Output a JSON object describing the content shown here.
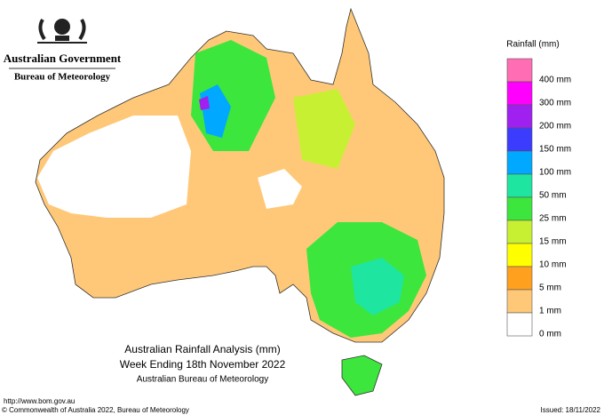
{
  "header": {
    "government": "Australian Government",
    "agency": "Bureau of Meteorology"
  },
  "legend": {
    "title": "Rainfall (mm)",
    "items": [
      {
        "label": "400 mm",
        "color": "#ff6eb4"
      },
      {
        "label": "300 mm",
        "color": "#ff00ff"
      },
      {
        "label": "200 mm",
        "color": "#a020f0"
      },
      {
        "label": "150 mm",
        "color": "#3c3cff"
      },
      {
        "label": "100 mm",
        "color": "#00a8ff"
      },
      {
        "label": "50 mm",
        "color": "#1ee6a0"
      },
      {
        "label": "25 mm",
        "color": "#3ce63c"
      },
      {
        "label": "15 mm",
        "color": "#c8f032"
      },
      {
        "label": "10 mm",
        "color": "#ffff00"
      },
      {
        "label": "5 mm",
        "color": "#ffa01e"
      },
      {
        "label": "1 mm",
        "color": "#ffc878"
      },
      {
        "label": "0 mm",
        "color": "#ffffff"
      }
    ]
  },
  "map": {
    "title": [
      "Australian Rainfall Analysis (mm)",
      "Week Ending 18th November 2022",
      "Australian Bureau of Meteorology"
    ]
  },
  "footer": {
    "url": "http://www.bom.gov.au",
    "copyright": "© Commonwealth of Australia 2022, Bureau of Meteorology",
    "issued": "Issued: 18/11/2022"
  }
}
